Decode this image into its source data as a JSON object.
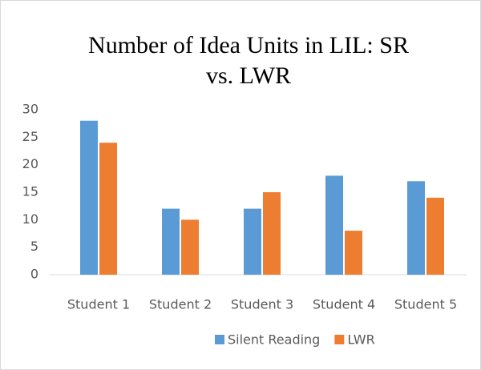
{
  "chart_data": {
    "type": "bar",
    "title": "Number of Idea Units in LIL: SR vs. LWR",
    "categories": [
      "Student 1",
      "Student 2",
      "Student 3",
      "Student 4",
      "Student 5"
    ],
    "series": [
      {
        "name": "Silent Reading",
        "color": "#5b9bd5",
        "values": [
          28,
          12,
          12,
          18,
          17
        ]
      },
      {
        "name": "LWR",
        "color": "#ed7d31",
        "values": [
          24,
          10,
          15,
          8,
          14
        ]
      }
    ],
    "ylim": [
      0,
      30
    ],
    "yticks": [
      0,
      5,
      10,
      15,
      20,
      25,
      30
    ],
    "grid": false,
    "legend": "bottom"
  }
}
